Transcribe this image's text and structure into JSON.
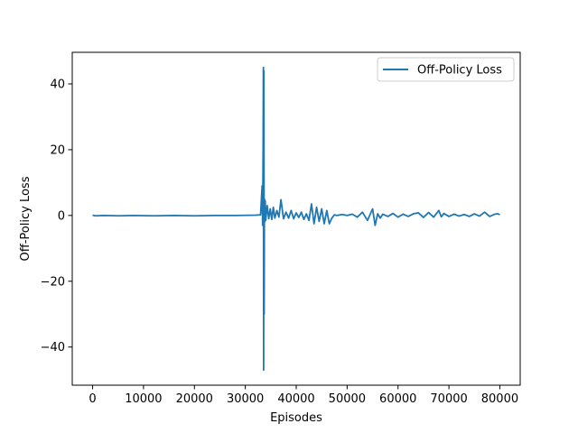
{
  "chart_data": {
    "type": "line",
    "title": "",
    "xlabel": "Episodes",
    "ylabel": "Off-Policy Loss",
    "xlim": [
      -4000,
      84000
    ],
    "ylim": [
      -51.6,
      49.6
    ],
    "xticks": [
      0,
      10000,
      20000,
      30000,
      40000,
      50000,
      60000,
      70000,
      80000
    ],
    "yticks": [
      -40,
      -20,
      0,
      20,
      40
    ],
    "xtick_labels": [
      "0",
      "10000",
      "20000",
      "30000",
      "40000",
      "50000",
      "60000",
      "70000",
      "80000"
    ],
    "ytick_labels": [
      "−40",
      "−20",
      "0",
      "20",
      "40"
    ],
    "grid": false,
    "legend_position": "upper right",
    "series": [
      {
        "name": "Off-Policy Loss",
        "color": "#1f77b4",
        "x": [
          0,
          500,
          2000,
          5000,
          8000,
          12000,
          16000,
          20000,
          24000,
          28000,
          32000,
          33000,
          33300,
          33400,
          33500,
          33550,
          33600,
          33650,
          33700,
          33750,
          33800,
          33900,
          34000,
          34300,
          34600,
          34900,
          35200,
          35500,
          35800,
          36200,
          36600,
          37000,
          37500,
          38000,
          38500,
          39000,
          39500,
          40000,
          40500,
          41000,
          41500,
          42000,
          42500,
          43000,
          43500,
          44000,
          44500,
          45000,
          45500,
          46000,
          46500,
          47000,
          47500,
          48000,
          49000,
          50000,
          51000,
          52000,
          53000,
          54000,
          55000,
          55500,
          56000,
          56500,
          57000,
          58000,
          59000,
          60000,
          61000,
          62000,
          63000,
          64000,
          65000,
          66000,
          67000,
          68000,
          68500,
          69000,
          70000,
          71000,
          72000,
          73000,
          74000,
          75000,
          76000,
          77000,
          78000,
          79000,
          79600,
          80000
        ],
        "y": [
          0.1,
          -0.1,
          0.0,
          -0.1,
          0.0,
          -0.1,
          0.0,
          -0.1,
          0.0,
          0.0,
          0.1,
          0.2,
          9.0,
          -3.0,
          20.0,
          45.0,
          -47.0,
          44.0,
          -30.0,
          5.0,
          -2.0,
          4.5,
          -1.5,
          3.0,
          -1.0,
          2.0,
          -1.2,
          2.5,
          -0.8,
          1.5,
          -0.5,
          4.8,
          -1.0,
          1.0,
          -0.8,
          1.5,
          -1.0,
          0.8,
          -0.6,
          1.0,
          -1.2,
          0.5,
          -1.5,
          3.5,
          -2.5,
          2.5,
          -1.8,
          2.0,
          -2.5,
          1.5,
          -2.5,
          -0.8,
          0.2,
          0.0,
          0.3,
          0.0,
          0.4,
          -0.5,
          1.0,
          -1.5,
          2.0,
          -3.0,
          0.5,
          -0.8,
          0.4,
          -0.3,
          0.6,
          -0.5,
          0.4,
          -0.3,
          0.5,
          0.8,
          -0.6,
          0.9,
          -0.5,
          1.5,
          -0.4,
          0.6,
          -0.3,
          0.4,
          -0.2,
          0.3,
          -0.3,
          0.5,
          -0.2,
          1.0,
          -0.3,
          0.4,
          0.5,
          0.2
        ]
      }
    ]
  }
}
